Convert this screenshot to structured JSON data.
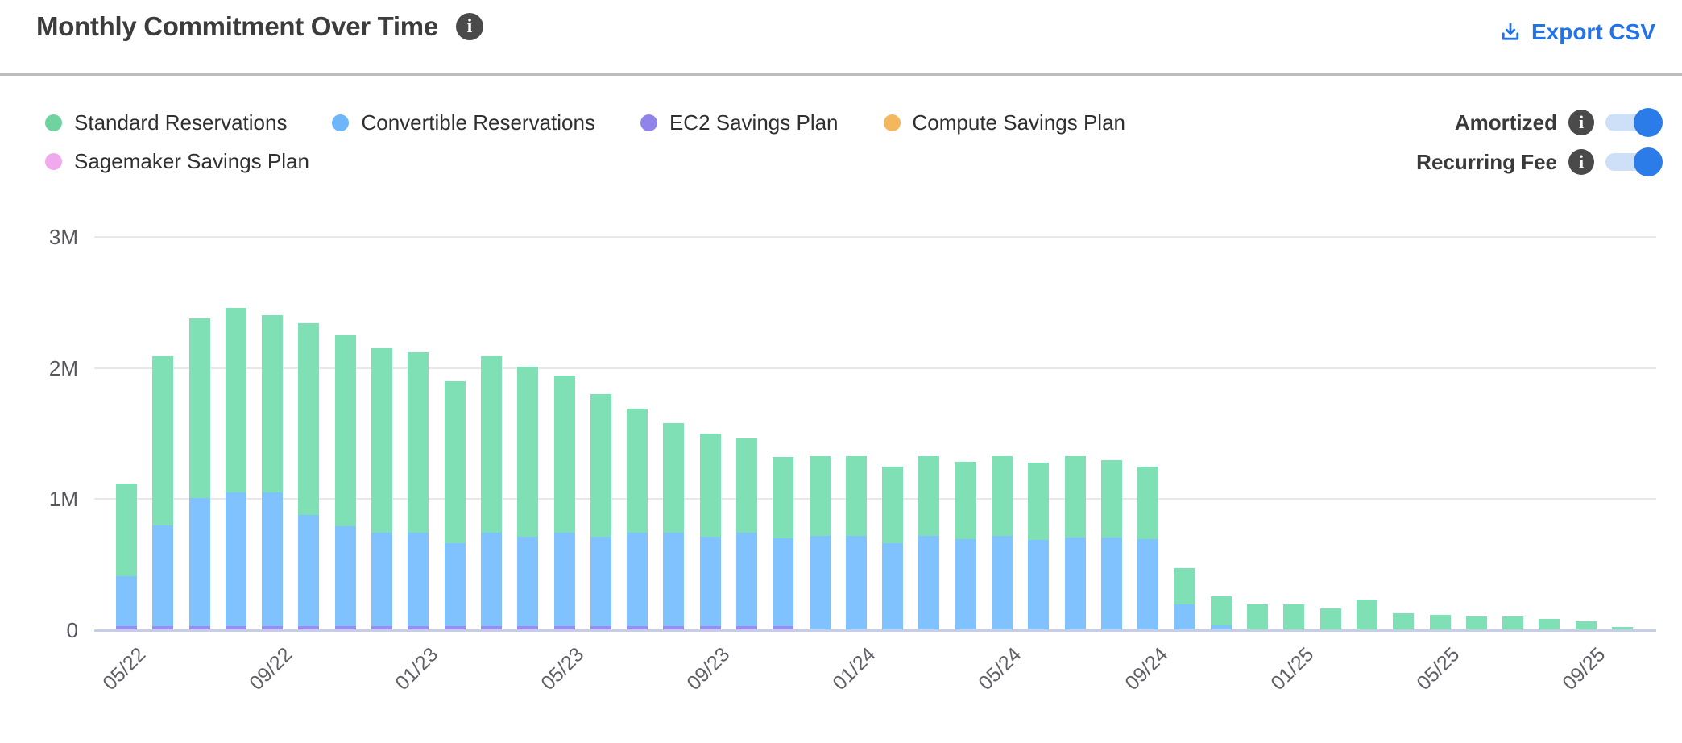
{
  "header": {
    "title": "Monthly Commitment Over Time",
    "export_label": "Export CSV"
  },
  "legend": {
    "items": [
      {
        "label": "Standard Reservations",
        "color": "#6fd3a0"
      },
      {
        "label": "Convertible Reservations",
        "color": "#6db6f7"
      },
      {
        "label": "EC2 Savings Plan",
        "color": "#9083ea"
      },
      {
        "label": "Compute Savings Plan",
        "color": "#f4b75e"
      },
      {
        "label": "Sagemaker Savings Plan",
        "color": "#f0a9ec"
      }
    ]
  },
  "toggles": [
    {
      "label": "Amortized",
      "state": "on"
    },
    {
      "label": "Recurring Fee",
      "state": "on"
    }
  ],
  "colors": {
    "accent_blue": "#2b7ce9",
    "export_blue": "#2273e8",
    "toggle_track": "#cde0f8",
    "axis_line": "#c7cde4",
    "gridline": "#e8e8e8"
  },
  "chart_data": {
    "type": "bar",
    "stacked": true,
    "unit": "M (millions)",
    "title": "Monthly Commitment Over Time",
    "grid": true,
    "ylim": [
      0,
      3
    ],
    "y_ticks": [
      {
        "label": "3M",
        "value": 3
      },
      {
        "label": "2M",
        "value": 2
      },
      {
        "label": "1M",
        "value": 1
      },
      {
        "label": "0",
        "value": 0
      }
    ],
    "categories": [
      "05/22",
      "06/22",
      "07/22",
      "08/22",
      "09/22",
      "10/22",
      "11/22",
      "12/22",
      "01/23",
      "02/23",
      "03/23",
      "04/23",
      "05/23",
      "06/23",
      "07/23",
      "08/23",
      "09/23",
      "10/23",
      "11/23",
      "12/23",
      "01/24",
      "02/24",
      "03/24",
      "04/24",
      "05/24",
      "06/24",
      "07/24",
      "08/24",
      "09/24",
      "10/24",
      "11/24",
      "12/24",
      "01/25",
      "02/25",
      "03/25",
      "04/25",
      "05/25",
      "06/25",
      "07/25",
      "08/25",
      "09/25",
      "10/25"
    ],
    "x_tick_labels": [
      "05/22",
      "09/22",
      "01/23",
      "05/23",
      "09/23",
      "01/24",
      "05/24",
      "09/24",
      "01/25",
      "05/25",
      "09/25"
    ],
    "stack_order": [
      "EC2 Savings Plan",
      "Convertible Reservations",
      "Standard Reservations",
      "Compute Savings Plan",
      "Sagemaker Savings Plan"
    ],
    "series": [
      {
        "name": "Standard Reservations",
        "color": "#7ee0b4",
        "values": [
          0.71,
          1.29,
          1.37,
          1.41,
          1.35,
          1.46,
          1.46,
          1.41,
          1.38,
          1.24,
          1.35,
          1.3,
          1.2,
          1.09,
          0.95,
          0.84,
          0.79,
          0.72,
          0.62,
          0.61,
          0.61,
          0.58,
          0.61,
          0.59,
          0.61,
          0.59,
          0.62,
          0.59,
          0.55,
          0.28,
          0.22,
          0.19,
          0.19,
          0.16,
          0.23,
          0.12,
          0.11,
          0.1,
          0.1,
          0.08,
          0.06,
          0.02
        ]
      },
      {
        "name": "Convertible Reservations",
        "color": "#7fc2fd",
        "values": [
          0.38,
          0.77,
          0.98,
          1.02,
          1.02,
          0.85,
          0.76,
          0.71,
          0.71,
          0.63,
          0.71,
          0.68,
          0.71,
          0.68,
          0.71,
          0.71,
          0.68,
          0.71,
          0.67,
          0.71,
          0.71,
          0.66,
          0.71,
          0.69,
          0.71,
          0.68,
          0.7,
          0.7,
          0.69,
          0.19,
          0.03,
          0,
          0,
          0,
          0,
          0,
          0,
          0,
          0,
          0,
          0,
          0
        ]
      },
      {
        "name": "EC2 Savings Plan",
        "color": "#9c8bf2",
        "values": [
          0.025,
          0.025,
          0.025,
          0.025,
          0.025,
          0.025,
          0.025,
          0.025,
          0.025,
          0.025,
          0.025,
          0.025,
          0.025,
          0.025,
          0.025,
          0.025,
          0.025,
          0.025,
          0.025,
          0,
          0,
          0,
          0,
          0,
          0,
          0,
          0,
          0,
          0,
          0,
          0,
          0,
          0,
          0,
          0,
          0,
          0,
          0,
          0,
          0,
          0,
          0
        ]
      },
      {
        "name": "Compute Savings Plan",
        "color": "#f4b75e",
        "values": [
          0,
          0,
          0,
          0,
          0,
          0,
          0,
          0,
          0,
          0,
          0,
          0,
          0,
          0,
          0,
          0,
          0,
          0,
          0,
          0,
          0,
          0,
          0,
          0,
          0,
          0,
          0,
          0,
          0,
          0,
          0,
          0,
          0,
          0,
          0,
          0,
          0,
          0,
          0,
          0,
          0,
          0
        ]
      },
      {
        "name": "Sagemaker Savings Plan",
        "color": "#f0a9ec",
        "values": [
          0,
          0,
          0,
          0,
          0,
          0,
          0,
          0,
          0,
          0,
          0,
          0,
          0,
          0,
          0,
          0,
          0,
          0,
          0,
          0,
          0,
          0,
          0,
          0,
          0,
          0,
          0,
          0,
          0,
          0,
          0,
          0,
          0,
          0,
          0,
          0,
          0,
          0,
          0,
          0,
          0,
          0
        ]
      }
    ]
  }
}
